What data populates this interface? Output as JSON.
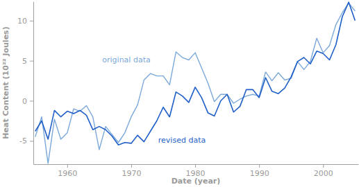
{
  "chart_data": {
    "type": "line",
    "x_label": "Date (year)",
    "y_label": "Heat Content (10²² Joules)",
    "x": [
      1955,
      1956,
      1957,
      1958,
      1959,
      1960,
      1961,
      1962,
      1963,
      1964,
      1965,
      1966,
      1967,
      1968,
      1969,
      1970,
      1971,
      1972,
      1973,
      1974,
      1975,
      1976,
      1977,
      1978,
      1979,
      1980,
      1981,
      1982,
      1983,
      1984,
      1985,
      1986,
      1987,
      1988,
      1989,
      1990,
      1991,
      1992,
      1993,
      1994,
      1995,
      1996,
      1997,
      1998,
      1999,
      2000,
      2001,
      2002,
      2003,
      2004,
      2005
    ],
    "series": [
      {
        "name": "original data",
        "color": "#7aa8da",
        "values": [
          -4.5,
          -2.0,
          -7.8,
          -2.3,
          -4.8,
          -4.0,
          -1.0,
          -1.3,
          -0.6,
          -2.0,
          -6.1,
          -3.2,
          -4.2,
          -5.2,
          -4.0,
          -2.0,
          -0.5,
          2.6,
          3.4,
          3.1,
          3.1,
          2.0,
          6.1,
          5.4,
          5.1,
          6.0,
          4.1,
          2.2,
          -0.1,
          0.8,
          0.8,
          -0.3,
          0.2,
          0.6,
          0.8,
          0.6,
          3.6,
          2.5,
          3.5,
          2.6,
          2.8,
          4.9,
          3.9,
          4.9,
          7.8,
          6.0,
          6.9,
          9.5,
          11.0,
          12.2,
          11.2
        ]
      },
      {
        "name": "revised data",
        "color": "#1f5fc8",
        "values": [
          -3.8,
          -2.5,
          -4.8,
          -1.2,
          -2.0,
          -1.3,
          -1.6,
          -1.2,
          -1.8,
          -3.6,
          -3.2,
          -3.6,
          -4.4,
          -5.5,
          -5.2,
          -5.3,
          -4.3,
          -5.1,
          -3.8,
          -2.5,
          -0.8,
          -2.0,
          1.1,
          0.6,
          -0.2,
          1.7,
          0.4,
          -1.5,
          -1.9,
          0.0,
          0.8,
          -1.4,
          -0.7,
          1.4,
          1.4,
          0.4,
          2.9,
          1.2,
          0.9,
          1.6,
          3.0,
          4.9,
          5.4,
          4.6,
          6.2,
          5.9,
          5.1,
          7.0,
          10.5,
          12.3,
          10.0
        ]
      }
    ],
    "xlim": [
      1954.7,
      2005.5
    ],
    "xticks": [
      1960,
      1970,
      1980,
      1990,
      2000
    ],
    "ylim": [
      -7.9,
      12.4
    ],
    "yticks": [
      -5,
      0,
      5,
      10
    ],
    "grid": false
  }
}
